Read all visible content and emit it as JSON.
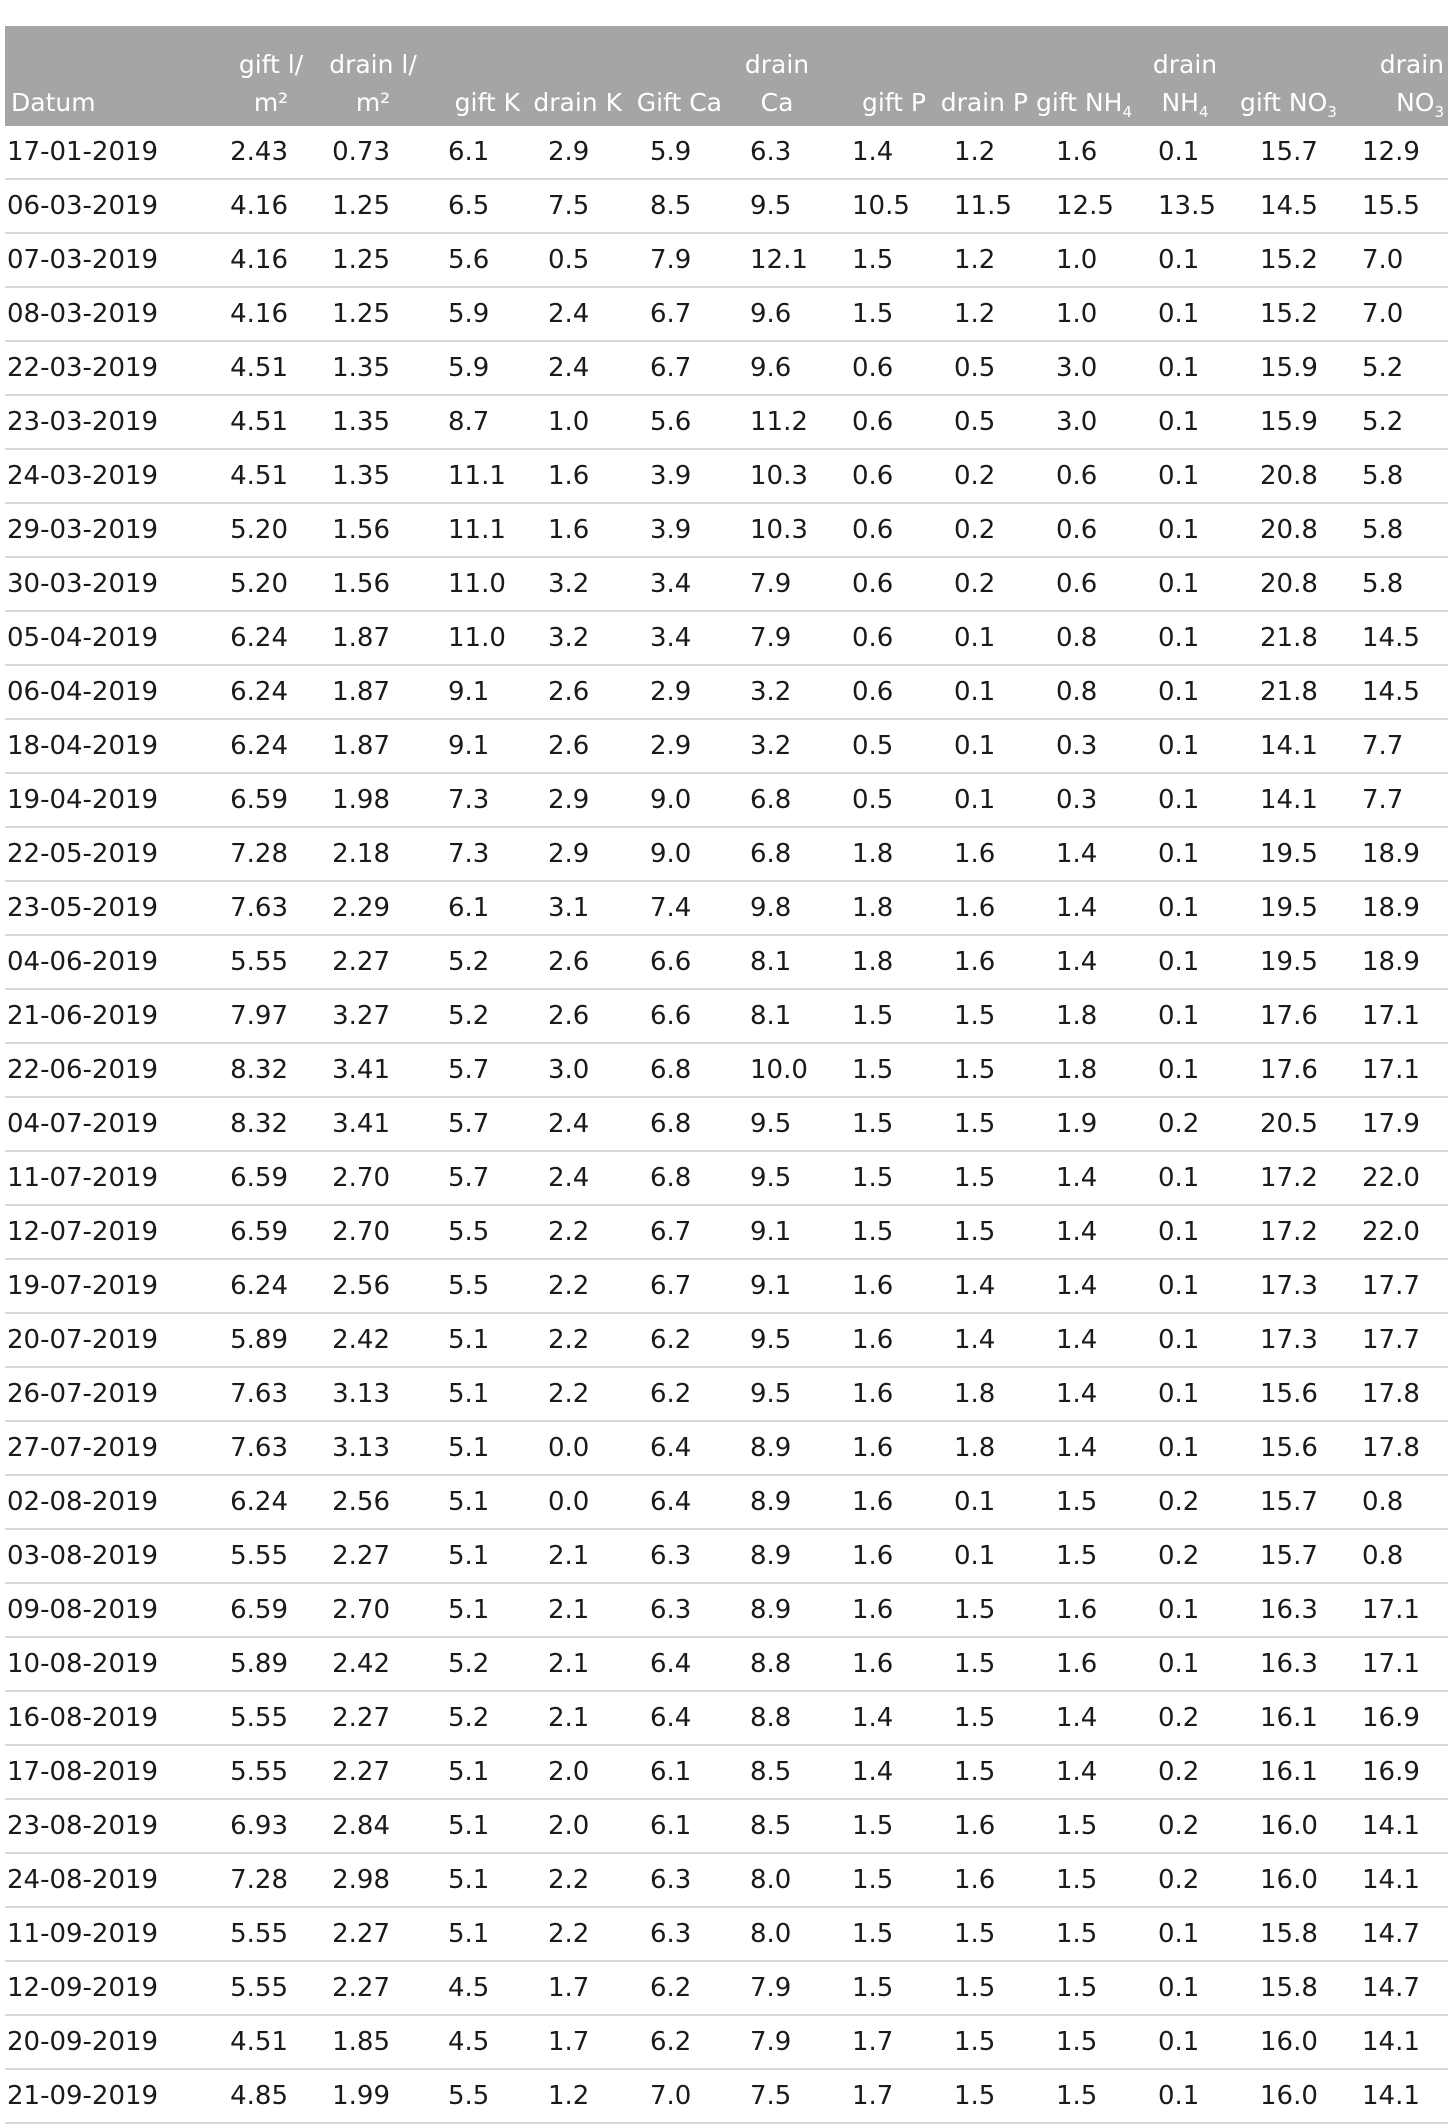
{
  "table": {
    "headers": [
      {
        "lines": [
          "",
          "Datum"
        ]
      },
      {
        "lines": [
          "gift l/",
          "m²"
        ]
      },
      {
        "lines": [
          "drain l/",
          "m²"
        ]
      },
      {
        "lines": [
          "",
          "gift K"
        ]
      },
      {
        "lines": [
          "",
          "drain K"
        ]
      },
      {
        "lines": [
          "",
          "Gift Ca"
        ]
      },
      {
        "lines": [
          "drain",
          "Ca"
        ]
      },
      {
        "lines": [
          "",
          "gift P"
        ]
      },
      {
        "lines": [
          "",
          "drain P"
        ]
      },
      {
        "lines": [
          "",
          "gift NH",
          "4"
        ]
      },
      {
        "lines": [
          "drain",
          "NH",
          "4"
        ]
      },
      {
        "lines": [
          "",
          "gift NO",
          "3"
        ]
      },
      {
        "lines": [
          "drain",
          "NO",
          "3"
        ]
      }
    ],
    "rows": [
      [
        "17-01-2019",
        "2.43",
        "0.73",
        "6.1",
        "2.9",
        "5.9",
        "6.3",
        "1.4",
        "1.2",
        "1.6",
        "0.1",
        "15.7",
        "12.9"
      ],
      [
        "06-03-2019",
        "4.16",
        "1.25",
        "6.5",
        "7.5",
        "8.5",
        "9.5",
        "10.5",
        "11.5",
        "12.5",
        "13.5",
        "14.5",
        "15.5"
      ],
      [
        "07-03-2019",
        "4.16",
        "1.25",
        "5.6",
        "0.5",
        "7.9",
        "12.1",
        "1.5",
        "1.2",
        "1.0",
        "0.1",
        "15.2",
        "7.0"
      ],
      [
        "08-03-2019",
        "4.16",
        "1.25",
        "5.9",
        "2.4",
        "6.7",
        "9.6",
        "1.5",
        "1.2",
        "1.0",
        "0.1",
        "15.2",
        "7.0"
      ],
      [
        "22-03-2019",
        "4.51",
        "1.35",
        "5.9",
        "2.4",
        "6.7",
        "9.6",
        "0.6",
        "0.5",
        "3.0",
        "0.1",
        "15.9",
        "5.2"
      ],
      [
        "23-03-2019",
        "4.51",
        "1.35",
        "8.7",
        "1.0",
        "5.6",
        "11.2",
        "0.6",
        "0.5",
        "3.0",
        "0.1",
        "15.9",
        "5.2"
      ],
      [
        "24-03-2019",
        "4.51",
        "1.35",
        "11.1",
        "1.6",
        "3.9",
        "10.3",
        "0.6",
        "0.2",
        "0.6",
        "0.1",
        "20.8",
        "5.8"
      ],
      [
        "29-03-2019",
        "5.20",
        "1.56",
        "11.1",
        "1.6",
        "3.9",
        "10.3",
        "0.6",
        "0.2",
        "0.6",
        "0.1",
        "20.8",
        "5.8"
      ],
      [
        "30-03-2019",
        "5.20",
        "1.56",
        "11.0",
        "3.2",
        "3.4",
        "7.9",
        "0.6",
        "0.2",
        "0.6",
        "0.1",
        "20.8",
        "5.8"
      ],
      [
        "05-04-2019",
        "6.24",
        "1.87",
        "11.0",
        "3.2",
        "3.4",
        "7.9",
        "0.6",
        "0.1",
        "0.8",
        "0.1",
        "21.8",
        "14.5"
      ],
      [
        "06-04-2019",
        "6.24",
        "1.87",
        "9.1",
        "2.6",
        "2.9",
        "3.2",
        "0.6",
        "0.1",
        "0.8",
        "0.1",
        "21.8",
        "14.5"
      ],
      [
        "18-04-2019",
        "6.24",
        "1.87",
        "9.1",
        "2.6",
        "2.9",
        "3.2",
        "0.5",
        "0.1",
        "0.3",
        "0.1",
        "14.1",
        "7.7"
      ],
      [
        "19-04-2019",
        "6.59",
        "1.98",
        "7.3",
        "2.9",
        "9.0",
        "6.8",
        "0.5",
        "0.1",
        "0.3",
        "0.1",
        "14.1",
        "7.7"
      ],
      [
        "22-05-2019",
        "7.28",
        "2.18",
        "7.3",
        "2.9",
        "9.0",
        "6.8",
        "1.8",
        "1.6",
        "1.4",
        "0.1",
        "19.5",
        "18.9"
      ],
      [
        "23-05-2019",
        "7.63",
        "2.29",
        "6.1",
        "3.1",
        "7.4",
        "9.8",
        "1.8",
        "1.6",
        "1.4",
        "0.1",
        "19.5",
        "18.9"
      ],
      [
        "04-06-2019",
        "5.55",
        "2.27",
        "5.2",
        "2.6",
        "6.6",
        "8.1",
        "1.8",
        "1.6",
        "1.4",
        "0.1",
        "19.5",
        "18.9"
      ],
      [
        "21-06-2019",
        "7.97",
        "3.27",
        "5.2",
        "2.6",
        "6.6",
        "8.1",
        "1.5",
        "1.5",
        "1.8",
        "0.1",
        "17.6",
        "17.1"
      ],
      [
        "22-06-2019",
        "8.32",
        "3.41",
        "5.7",
        "3.0",
        "6.8",
        "10.0",
        "1.5",
        "1.5",
        "1.8",
        "0.1",
        "17.6",
        "17.1"
      ],
      [
        "04-07-2019",
        "8.32",
        "3.41",
        "5.7",
        "2.4",
        "6.8",
        "9.5",
        "1.5",
        "1.5",
        "1.9",
        "0.2",
        "20.5",
        "17.9"
      ],
      [
        "11-07-2019",
        "6.59",
        "2.70",
        "5.7",
        "2.4",
        "6.8",
        "9.5",
        "1.5",
        "1.5",
        "1.4",
        "0.1",
        "17.2",
        "22.0"
      ],
      [
        "12-07-2019",
        "6.59",
        "2.70",
        "5.5",
        "2.2",
        "6.7",
        "9.1",
        "1.5",
        "1.5",
        "1.4",
        "0.1",
        "17.2",
        "22.0"
      ],
      [
        "19-07-2019",
        "6.24",
        "2.56",
        "5.5",
        "2.2",
        "6.7",
        "9.1",
        "1.6",
        "1.4",
        "1.4",
        "0.1",
        "17.3",
        "17.7"
      ],
      [
        "20-07-2019",
        "5.89",
        "2.42",
        "5.1",
        "2.2",
        "6.2",
        "9.5",
        "1.6",
        "1.4",
        "1.4",
        "0.1",
        "17.3",
        "17.7"
      ],
      [
        "26-07-2019",
        "7.63",
        "3.13",
        "5.1",
        "2.2",
        "6.2",
        "9.5",
        "1.6",
        "1.8",
        "1.4",
        "0.1",
        "15.6",
        "17.8"
      ],
      [
        "27-07-2019",
        "7.63",
        "3.13",
        "5.1",
        "0.0",
        "6.4",
        "8.9",
        "1.6",
        "1.8",
        "1.4",
        "0.1",
        "15.6",
        "17.8"
      ],
      [
        "02-08-2019",
        "6.24",
        "2.56",
        "5.1",
        "0.0",
        "6.4",
        "8.9",
        "1.6",
        "0.1",
        "1.5",
        "0.2",
        "15.7",
        "0.8"
      ],
      [
        "03-08-2019",
        "5.55",
        "2.27",
        "5.1",
        "2.1",
        "6.3",
        "8.9",
        "1.6",
        "0.1",
        "1.5",
        "0.2",
        "15.7",
        "0.8"
      ],
      [
        "09-08-2019",
        "6.59",
        "2.70",
        "5.1",
        "2.1",
        "6.3",
        "8.9",
        "1.6",
        "1.5",
        "1.6",
        "0.1",
        "16.3",
        "17.1"
      ],
      [
        "10-08-2019",
        "5.89",
        "2.42",
        "5.2",
        "2.1",
        "6.4",
        "8.8",
        "1.6",
        "1.5",
        "1.6",
        "0.1",
        "16.3",
        "17.1"
      ],
      [
        "16-08-2019",
        "5.55",
        "2.27",
        "5.2",
        "2.1",
        "6.4",
        "8.8",
        "1.4",
        "1.5",
        "1.4",
        "0.2",
        "16.1",
        "16.9"
      ],
      [
        "17-08-2019",
        "5.55",
        "2.27",
        "5.1",
        "2.0",
        "6.1",
        "8.5",
        "1.4",
        "1.5",
        "1.4",
        "0.2",
        "16.1",
        "16.9"
      ],
      [
        "23-08-2019",
        "6.93",
        "2.84",
        "5.1",
        "2.0",
        "6.1",
        "8.5",
        "1.5",
        "1.6",
        "1.5",
        "0.2",
        "16.0",
        "14.1"
      ],
      [
        "24-08-2019",
        "7.28",
        "2.98",
        "5.1",
        "2.2",
        "6.3",
        "8.0",
        "1.5",
        "1.6",
        "1.5",
        "0.2",
        "16.0",
        "14.1"
      ],
      [
        "11-09-2019",
        "5.55",
        "2.27",
        "5.1",
        "2.2",
        "6.3",
        "8.0",
        "1.5",
        "1.5",
        "1.5",
        "0.1",
        "15.8",
        "14.7"
      ],
      [
        "12-09-2019",
        "5.55",
        "2.27",
        "4.5",
        "1.7",
        "6.2",
        "7.9",
        "1.5",
        "1.5",
        "1.5",
        "0.1",
        "15.8",
        "14.7"
      ],
      [
        "20-09-2019",
        "4.51",
        "1.85",
        "4.5",
        "1.7",
        "6.2",
        "7.9",
        "1.7",
        "1.5",
        "1.5",
        "0.1",
        "16.0",
        "14.1"
      ],
      [
        "21-09-2019",
        "4.85",
        "1.99",
        "5.5",
        "1.2",
        "7.0",
        "7.5",
        "1.7",
        "1.5",
        "1.5",
        "0.1",
        "16.0",
        "14.1"
      ]
    ]
  }
}
